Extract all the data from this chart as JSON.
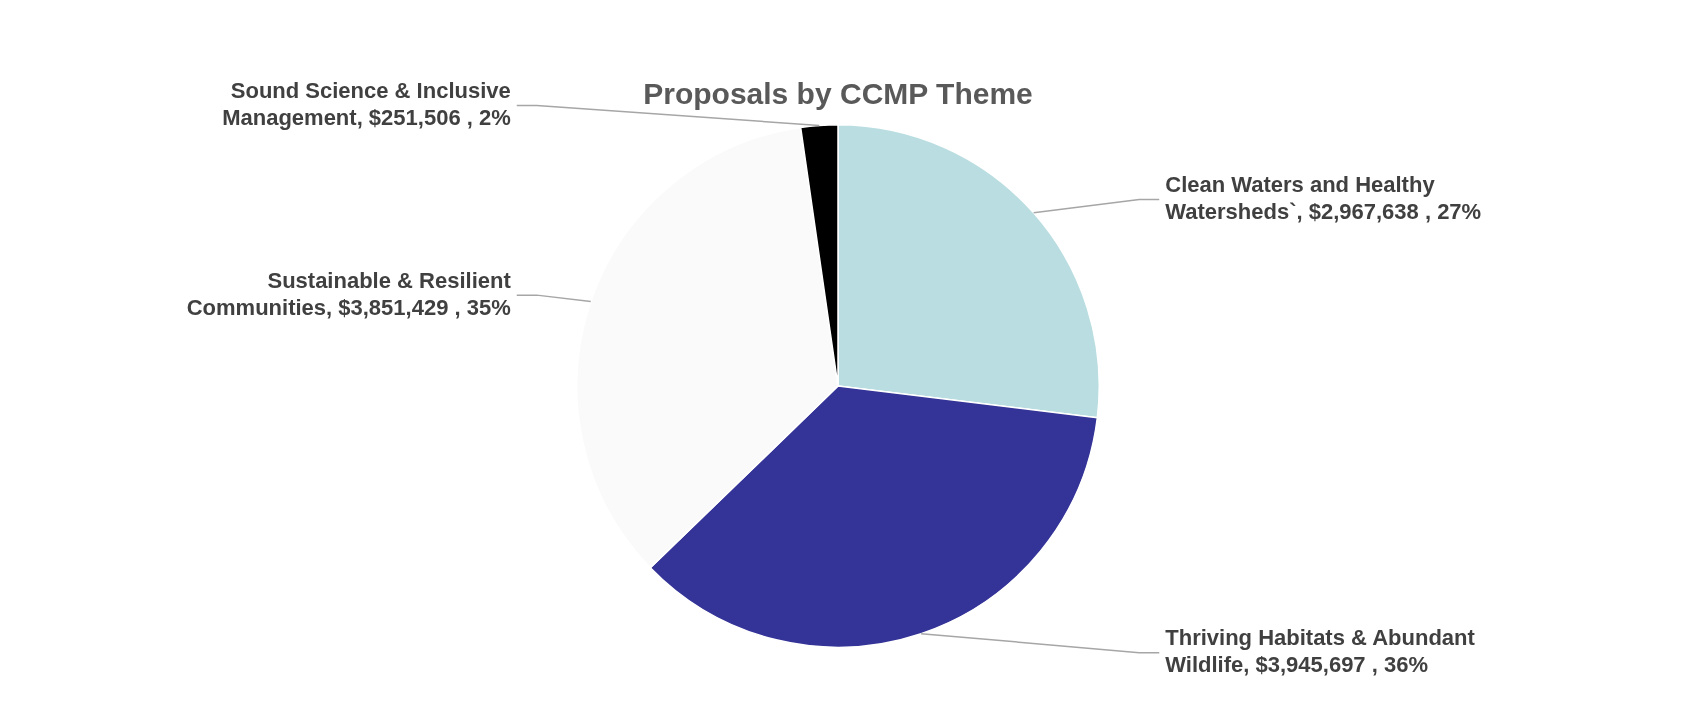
{
  "chart_data": {
    "type": "pie",
    "title": "Proposals by CCMP Theme",
    "categories": [
      "Clean Waters and Healthy Watersheds`",
      "Thriving Habitats & Abundant Wildlife",
      "Sustainable & Resilient Communities",
      "Sound Science & Inclusive Management"
    ],
    "values": [
      2967638,
      3945697,
      3851429,
      251506
    ],
    "value_labels": [
      "$2,967,638 , 27%",
      "$3,945,697 , 36%",
      "$3,851,429 , 35%",
      "$251,506 , 2%"
    ],
    "colors": [
      "#b9dde0",
      "#343397",
      "#fafafa",
      "#000000"
    ],
    "legend": false
  }
}
